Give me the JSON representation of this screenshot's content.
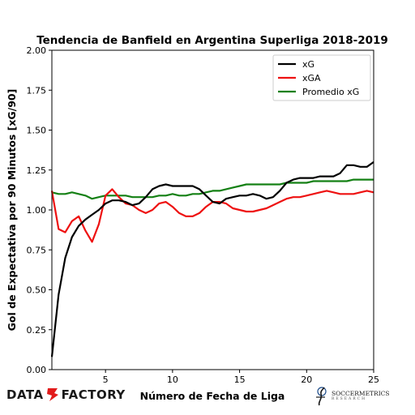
{
  "chart_data": {
    "type": "line",
    "title": "Tendencia de Banfield en Argentina Superliga 2018-2019",
    "xlabel": "Número de Fecha de Liga",
    "ylabel": "Gol de Expectativa por 90 Minutos [xG/90]",
    "xlim": [
      1,
      25
    ],
    "ylim": [
      0,
      2
    ],
    "xticks": [
      5,
      10,
      15,
      20,
      25
    ],
    "yticks": [
      "0.00",
      "0.25",
      "0.50",
      "0.75",
      "1.00",
      "1.25",
      "1.50",
      "1.75",
      "2.00"
    ],
    "legend_position": "top-right",
    "grid": false,
    "x": [
      1,
      1.5,
      2,
      2.5,
      3,
      3.5,
      4,
      4.5,
      5,
      5.5,
      6,
      6.5,
      7,
      7.5,
      8,
      8.5,
      9,
      9.5,
      10,
      10.5,
      11,
      11.5,
      12,
      12.5,
      13,
      13.5,
      14,
      14.5,
      15,
      15.5,
      16,
      16.5,
      17,
      17.5,
      18,
      18.5,
      19,
      19.5,
      20,
      20.5,
      21,
      21.5,
      22,
      22.5,
      23,
      23.5,
      24,
      24.5,
      25
    ],
    "series": [
      {
        "name": "xG",
        "color": "#000000",
        "values": [
          0.08,
          0.47,
          0.7,
          0.83,
          0.9,
          0.94,
          0.97,
          1.0,
          1.04,
          1.06,
          1.06,
          1.05,
          1.03,
          1.04,
          1.08,
          1.13,
          1.15,
          1.16,
          1.15,
          1.15,
          1.15,
          1.15,
          1.13,
          1.09,
          1.05,
          1.04,
          1.07,
          1.08,
          1.09,
          1.09,
          1.1,
          1.09,
          1.07,
          1.08,
          1.12,
          1.17,
          1.19,
          1.2,
          1.2,
          1.2,
          1.21,
          1.21,
          1.21,
          1.23,
          1.28,
          1.28,
          1.27,
          1.27,
          1.3
        ]
      },
      {
        "name": "xGA",
        "color": "#ee1111",
        "values": [
          1.12,
          0.88,
          0.86,
          0.93,
          0.96,
          0.87,
          0.8,
          0.91,
          1.09,
          1.13,
          1.08,
          1.04,
          1.03,
          1.0,
          0.98,
          1.0,
          1.04,
          1.05,
          1.02,
          0.98,
          0.96,
          0.96,
          0.98,
          1.02,
          1.05,
          1.05,
          1.04,
          1.01,
          1.0,
          0.99,
          0.99,
          1.0,
          1.01,
          1.03,
          1.05,
          1.07,
          1.08,
          1.08,
          1.09,
          1.1,
          1.11,
          1.12,
          1.11,
          1.1,
          1.1,
          1.1,
          1.11,
          1.12,
          1.11
        ]
      },
      {
        "name": "Promedio xG",
        "color": "#148014",
        "values": [
          1.11,
          1.1,
          1.1,
          1.11,
          1.1,
          1.09,
          1.07,
          1.08,
          1.09,
          1.09,
          1.09,
          1.09,
          1.08,
          1.08,
          1.08,
          1.08,
          1.09,
          1.09,
          1.1,
          1.09,
          1.09,
          1.1,
          1.1,
          1.11,
          1.12,
          1.12,
          1.13,
          1.14,
          1.15,
          1.16,
          1.16,
          1.16,
          1.16,
          1.16,
          1.16,
          1.17,
          1.17,
          1.17,
          1.17,
          1.18,
          1.18,
          1.18,
          1.18,
          1.18,
          1.18,
          1.19,
          1.19,
          1.19,
          1.19
        ]
      }
    ]
  },
  "branding": {
    "left_logo_text_a": "DATA",
    "left_logo_text_b": "FACTORY",
    "left_logo_accent": "#e21b1b",
    "right_logo_text": "SOCCERMETRICS",
    "right_logo_subtext": "RESEARCH"
  }
}
